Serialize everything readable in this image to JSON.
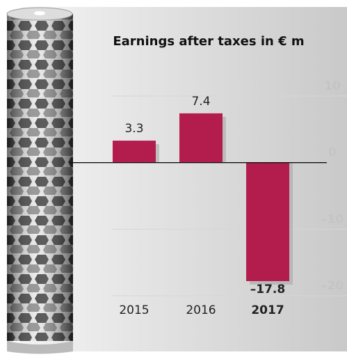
{
  "chart_data": {
    "type": "bar",
    "title": "Earnings after taxes in € m",
    "categories": [
      "2015",
      "2016",
      "2017"
    ],
    "values": [
      3.3,
      7.4,
      -17.8
    ],
    "value_labels": [
      "3.3",
      "7.4",
      "–17.8"
    ],
    "color": "#b31d4d",
    "ylim": [
      -20,
      10
    ],
    "yticks": [
      10,
      0,
      {
        "value": -10,
        "label": "–10"
      },
      {
        "value": -20,
        "label": "–20"
      }
    ],
    "grid": true
  }
}
